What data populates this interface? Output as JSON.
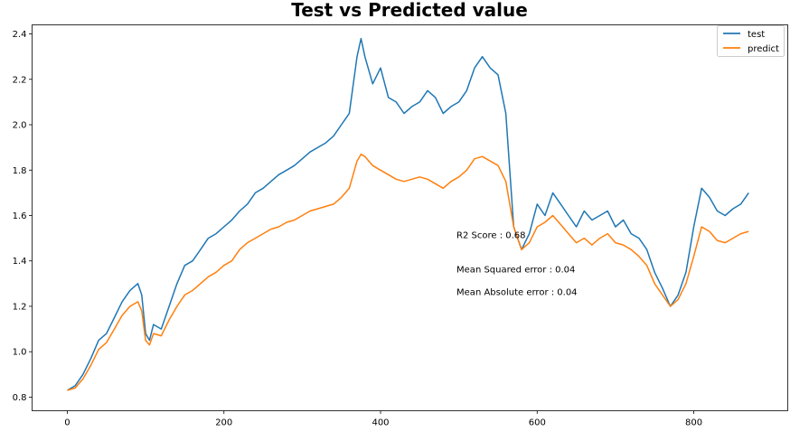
{
  "chart_data": {
    "type": "line",
    "title": "Test vs Predicted value",
    "xlabel": "",
    "ylabel": "",
    "xlim": [
      -45,
      920
    ],
    "ylim": [
      0.74,
      2.44
    ],
    "x_ticks": [
      0,
      200,
      400,
      600,
      800
    ],
    "y_ticks": [
      0.8,
      1.0,
      1.2,
      1.4,
      1.6,
      1.8,
      2.0,
      2.2,
      2.4
    ],
    "x_tick_labels": [
      "0",
      "200",
      "400",
      "600",
      "800"
    ],
    "y_tick_labels": [
      "0.8",
      "1.0",
      "1.2",
      "1.4",
      "1.6",
      "1.8",
      "2.0",
      "2.2",
      "2.4"
    ],
    "grid": false,
    "legend_position": "top-right",
    "series": [
      {
        "name": "test",
        "color": "#1f77b4",
        "x": [
          0,
          10,
          20,
          30,
          40,
          50,
          60,
          70,
          80,
          90,
          95,
          100,
          105,
          110,
          120,
          130,
          140,
          150,
          160,
          170,
          180,
          190,
          200,
          210,
          220,
          230,
          240,
          250,
          260,
          270,
          280,
          290,
          300,
          310,
          320,
          330,
          340,
          350,
          360,
          370,
          375,
          380,
          390,
          400,
          410,
          420,
          430,
          440,
          450,
          460,
          470,
          480,
          490,
          500,
          510,
          520,
          530,
          540,
          550,
          560,
          570,
          580,
          590,
          600,
          610,
          620,
          630,
          640,
          650,
          660,
          670,
          680,
          690,
          700,
          710,
          720,
          730,
          740,
          750,
          760,
          770,
          780,
          790,
          800,
          810,
          820,
          830,
          840,
          850,
          860,
          870
        ],
        "y": [
          0.83,
          0.85,
          0.9,
          0.97,
          1.05,
          1.08,
          1.15,
          1.22,
          1.27,
          1.3,
          1.25,
          1.08,
          1.05,
          1.12,
          1.1,
          1.2,
          1.3,
          1.38,
          1.4,
          1.45,
          1.5,
          1.52,
          1.55,
          1.58,
          1.62,
          1.65,
          1.7,
          1.72,
          1.75,
          1.78,
          1.8,
          1.82,
          1.85,
          1.88,
          1.9,
          1.92,
          1.95,
          2.0,
          2.05,
          2.3,
          2.38,
          2.3,
          2.18,
          2.25,
          2.12,
          2.1,
          2.05,
          2.08,
          2.1,
          2.15,
          2.12,
          2.05,
          2.08,
          2.1,
          2.15,
          2.25,
          2.3,
          2.25,
          2.22,
          2.05,
          1.55,
          1.45,
          1.52,
          1.65,
          1.6,
          1.7,
          1.65,
          1.6,
          1.55,
          1.62,
          1.58,
          1.6,
          1.62,
          1.55,
          1.58,
          1.52,
          1.5,
          1.45,
          1.35,
          1.28,
          1.2,
          1.25,
          1.35,
          1.55,
          1.72,
          1.68,
          1.62,
          1.6,
          1.63,
          1.65,
          1.7
        ]
      },
      {
        "name": "predict",
        "color": "#ff7f0e",
        "x": [
          0,
          10,
          20,
          30,
          40,
          50,
          60,
          70,
          80,
          90,
          95,
          100,
          105,
          110,
          120,
          130,
          140,
          150,
          160,
          170,
          180,
          190,
          200,
          210,
          220,
          230,
          240,
          250,
          260,
          270,
          280,
          290,
          300,
          310,
          320,
          330,
          340,
          350,
          360,
          370,
          375,
          380,
          390,
          400,
          410,
          420,
          430,
          440,
          450,
          460,
          470,
          480,
          490,
          500,
          510,
          520,
          530,
          540,
          550,
          560,
          570,
          580,
          590,
          600,
          610,
          620,
          630,
          640,
          650,
          660,
          670,
          680,
          690,
          700,
          710,
          720,
          730,
          740,
          750,
          760,
          770,
          780,
          790,
          800,
          810,
          820,
          830,
          840,
          850,
          860,
          870
        ],
        "y": [
          0.83,
          0.84,
          0.88,
          0.94,
          1.01,
          1.04,
          1.1,
          1.16,
          1.2,
          1.22,
          1.18,
          1.05,
          1.03,
          1.08,
          1.07,
          1.14,
          1.2,
          1.25,
          1.27,
          1.3,
          1.33,
          1.35,
          1.38,
          1.4,
          1.45,
          1.48,
          1.5,
          1.52,
          1.54,
          1.55,
          1.57,
          1.58,
          1.6,
          1.62,
          1.63,
          1.64,
          1.65,
          1.68,
          1.72,
          1.84,
          1.87,
          1.86,
          1.82,
          1.8,
          1.78,
          1.76,
          1.75,
          1.76,
          1.77,
          1.76,
          1.74,
          1.72,
          1.75,
          1.77,
          1.8,
          1.85,
          1.86,
          1.84,
          1.82,
          1.75,
          1.55,
          1.45,
          1.48,
          1.55,
          1.57,
          1.6,
          1.56,
          1.52,
          1.48,
          1.5,
          1.47,
          1.5,
          1.52,
          1.48,
          1.47,
          1.45,
          1.42,
          1.38,
          1.3,
          1.25,
          1.2,
          1.23,
          1.3,
          1.42,
          1.55,
          1.53,
          1.49,
          1.48,
          1.5,
          1.52,
          1.53
        ]
      }
    ],
    "annotations": [
      {
        "text": "R2 Score : 0.68",
        "x": 497,
        "y": 1.5
      },
      {
        "text": "Mean Squared error : 0.04",
        "x": 497,
        "y": 1.35
      },
      {
        "text": "Mean Absolute error : 0.04",
        "x": 497,
        "y": 1.25
      }
    ]
  }
}
